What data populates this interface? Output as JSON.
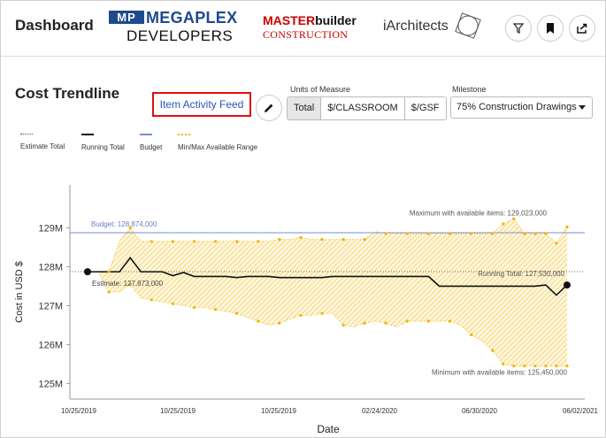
{
  "header": {
    "title": "Dashboard",
    "logos": {
      "megaplex": {
        "mark": "MP",
        "name": "MEGAPLEX",
        "sub": "DEVELOPERS"
      },
      "masterbuilder": {
        "bold_a": "MASTER",
        "bold_b": "builder",
        "sub": "CONSTRUCTION"
      },
      "iarchitects": {
        "name": "iArchitects"
      }
    },
    "icons": [
      "filter-icon",
      "bookmark-icon",
      "share-icon"
    ]
  },
  "section": {
    "title": "Cost Trendline",
    "feed_button": "Item Activity Feed",
    "units": {
      "label": "Units of Measure",
      "options": [
        "Total",
        "$/CLASSROOM",
        "$/GSF"
      ],
      "selected": "Total"
    },
    "milestone": {
      "label": "Milestone",
      "value": "75% Construction Drawings"
    }
  },
  "legend": {
    "estimate": "Estimate Total",
    "running": "Running Total",
    "budget": "Budget",
    "range": "Min/Max Available Range"
  },
  "colors": {
    "budget": "#7a8fcf",
    "range": "#f0b400",
    "running": "#111111",
    "accent": "#2a56b8",
    "highlight": "#dd1111"
  },
  "chart_data": {
    "type": "line",
    "xlabel": "Date",
    "ylabel": "Cost in USD $",
    "yticks": [
      "125M",
      "126M",
      "127M",
      "128M",
      "129M"
    ],
    "ylim": [
      124.6,
      130.1
    ],
    "xticks": [
      "10/25/2019",
      "10/25/2019",
      "10/25/2019",
      "02/24/2020",
      "06/30/2020",
      "06/02/2021"
    ],
    "annotations": {
      "budget": "Budget: 128,874,000",
      "estimate": "Estimate: 127,873,000",
      "max": "Maximum with available items: 129,023,000",
      "running": "Running Total: 127,530,000",
      "min": "Minimum with available items: 125,450,000"
    },
    "budget": 128.874,
    "estimate": 127.873,
    "running_end": 127.53,
    "x": [
      0,
      1,
      2,
      3,
      4,
      5,
      6,
      7,
      8,
      9,
      10,
      11,
      12,
      13,
      14,
      15,
      16,
      17,
      18,
      19,
      20,
      21,
      22,
      23,
      24,
      25,
      26,
      27,
      28,
      29,
      30,
      31,
      32,
      33,
      34,
      35,
      36,
      37,
      38,
      39,
      40,
      41,
      42,
      43,
      44,
      45
    ],
    "series": [
      {
        "name": "Running Total",
        "values": [
          127.87,
          127.87,
          127.87,
          127.87,
          128.23,
          127.87,
          127.87,
          127.87,
          127.77,
          127.85,
          127.75,
          127.75,
          127.75,
          127.75,
          127.72,
          127.75,
          127.75,
          127.75,
          127.72,
          127.72,
          127.72,
          127.72,
          127.72,
          127.75,
          127.75,
          127.75,
          127.75,
          127.75,
          127.75,
          127.75,
          127.75,
          127.75,
          127.75,
          127.5,
          127.5,
          127.5,
          127.5,
          127.5,
          127.5,
          127.5,
          127.5,
          127.5,
          127.5,
          127.53,
          127.27,
          127.53
        ]
      },
      {
        "name": "Max",
        "values": [
          127.87,
          127.87,
          127.87,
          128.65,
          129.0,
          128.65,
          128.65,
          128.65,
          128.65,
          128.65,
          128.65,
          128.65,
          128.65,
          128.65,
          128.65,
          128.65,
          128.65,
          128.65,
          128.7,
          128.7,
          128.75,
          128.7,
          128.7,
          128.7,
          128.7,
          128.7,
          128.7,
          128.9,
          128.85,
          128.85,
          128.85,
          128.85,
          128.85,
          128.85,
          128.85,
          128.85,
          128.85,
          128.85,
          128.85,
          129.1,
          129.23,
          128.85,
          128.85,
          128.85,
          128.6,
          129.02
        ]
      },
      {
        "name": "Min",
        "values": [
          127.87,
          127.87,
          127.35,
          127.35,
          127.55,
          127.2,
          127.15,
          127.1,
          127.05,
          127.0,
          126.95,
          126.95,
          126.9,
          126.85,
          126.8,
          126.7,
          126.6,
          126.5,
          126.55,
          126.65,
          126.75,
          126.75,
          126.8,
          126.8,
          126.5,
          126.45,
          126.55,
          126.6,
          126.55,
          126.45,
          126.6,
          126.6,
          126.6,
          126.6,
          126.6,
          126.5,
          126.25,
          126.1,
          125.85,
          125.5,
          125.45,
          125.45,
          125.45,
          125.45,
          125.45,
          125.45
        ]
      }
    ]
  }
}
